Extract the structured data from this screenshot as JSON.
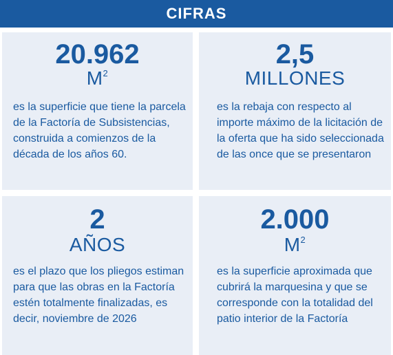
{
  "header": {
    "title": "CIFRAS"
  },
  "cards": [
    {
      "value": "20.962",
      "unit": "M",
      "unit_sup": "2",
      "description": "es la superficie que tiene la parcela de la Factoría de Subsistencias, construida a comienzos de la década de los años 60."
    },
    {
      "value": "2,5",
      "unit": "MILLONES",
      "unit_sup": "",
      "description": "es la rebaja con respecto al importe máximo de la licitación de la oferta que ha sido seleccionada de las once que se presentaron"
    },
    {
      "value": "2",
      "unit": "AÑOS",
      "unit_sup": "",
      "description": "es el plazo que los pliegos estiman para que las obras en la Factoría estén totalmente finalizadas, es decir, noviembre de 2026"
    },
    {
      "value": "2.000",
      "unit": "M",
      "unit_sup": "2",
      "description": "es la superficie aproximada que cubrirá la marquesina y que se corresponde con la totalidad del patio interior de la Factoría"
    }
  ]
}
